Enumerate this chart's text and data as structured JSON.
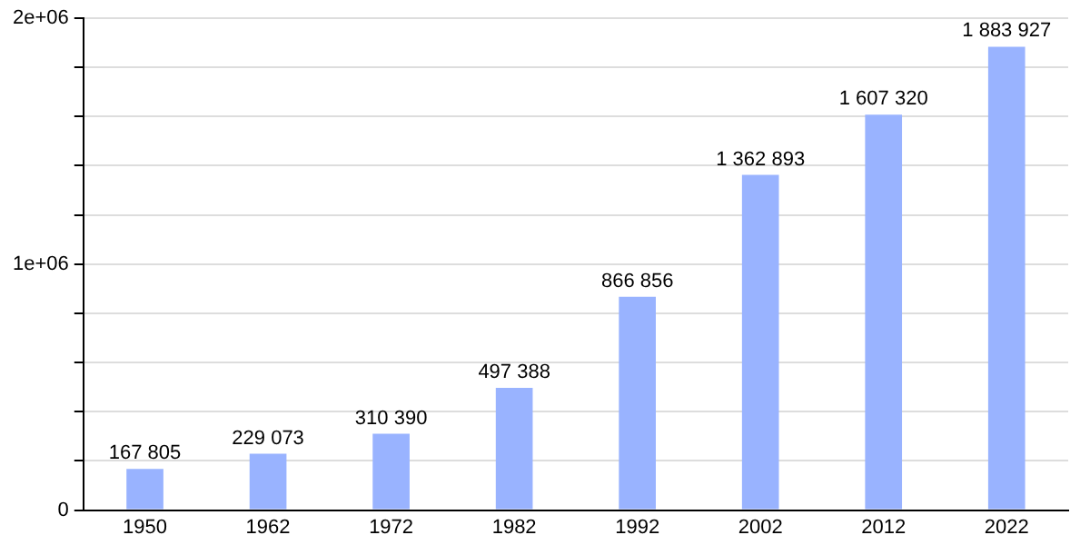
{
  "chart_data": {
    "type": "bar",
    "categories": [
      "1950",
      "1962",
      "1972",
      "1982",
      "1992",
      "2002",
      "2012",
      "2022"
    ],
    "values": [
      167805,
      229073,
      310390,
      497388,
      866856,
      1362893,
      1607320,
      1883927
    ],
    "value_labels": [
      "167 805",
      "229 073",
      "310 390",
      "497 388",
      "866 856",
      "1 362 893",
      "1 607 320",
      "1 883 927"
    ],
    "color": "#99b3ff",
    "ylim": [
      0,
      2000000
    ],
    "yticks": [
      0,
      {
        "value": 200000,
        "label": null
      },
      {
        "value": 400000,
        "label": null
      },
      {
        "value": 600000,
        "label": null
      },
      {
        "value": 800000,
        "label": null
      },
      {
        "value": 1000000,
        "label": "1e+06"
      },
      {
        "value": 1200000,
        "label": null
      },
      {
        "value": 1400000,
        "label": null
      },
      {
        "value": 1600000,
        "label": null
      },
      {
        "value": 1800000,
        "label": null
      },
      {
        "value": 2000000,
        "label": "2e+06"
      }
    ],
    "grid": "y"
  }
}
